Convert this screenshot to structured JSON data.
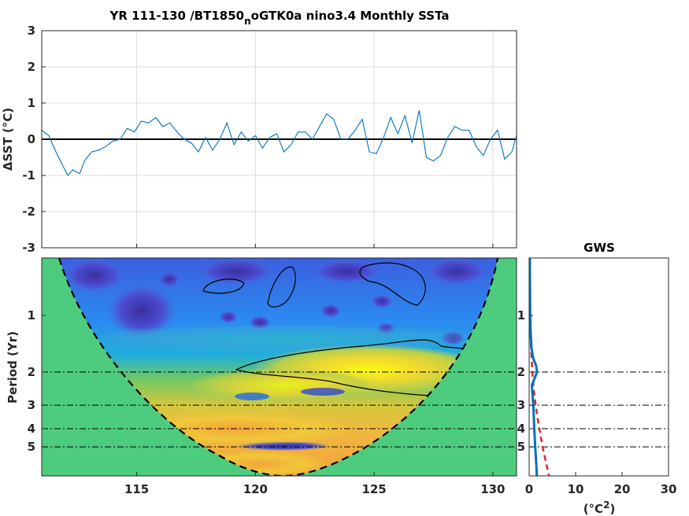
{
  "chart_data": [
    {
      "type": "line",
      "title_main": "YR 111-130 /BT1850",
      "title_sub": "n",
      "title_rest": "oGTK0a nino3.4 Monthly SSTa",
      "ylabel": "ΔSST (°C)",
      "xlim": [
        111,
        131
      ],
      "ylim": [
        -3,
        3
      ],
      "yticks": [
        "-3",
        "-2",
        "-1",
        "0",
        "1",
        "2",
        "3"
      ],
      "xticks": [
        115,
        120,
        125,
        130
      ],
      "grid": true,
      "series": [
        {
          "color": "#0072BD",
          "x": [
            111,
            111.3,
            111.6,
            111.9,
            112.1,
            112.3,
            112.6,
            112.8,
            113.1,
            113.4,
            113.7,
            114.0,
            114.3,
            114.6,
            114.9,
            115.2,
            115.5,
            115.8,
            116.1,
            116.4,
            116.7,
            117.0,
            117.3,
            117.6,
            117.9,
            118.2,
            118.5,
            118.8,
            119.1,
            119.4,
            119.7,
            120.0,
            120.3,
            120.6,
            120.9,
            121.2,
            121.5,
            121.8,
            122.1,
            122.4,
            122.7,
            123.0,
            123.3,
            123.6,
            123.9,
            124.2,
            124.5,
            124.8,
            125.1,
            125.4,
            125.7,
            126.0,
            126.3,
            126.6,
            126.9,
            127.2,
            127.5,
            127.8,
            128.1,
            128.4,
            128.7,
            129.0,
            129.3,
            129.6,
            129.9,
            130.2,
            130.5,
            130.8,
            131
          ],
          "values": [
            0.25,
            0.1,
            -0.35,
            -0.75,
            -1.0,
            -0.85,
            -0.95,
            -0.6,
            -0.35,
            -0.3,
            -0.2,
            -0.05,
            0.0,
            0.3,
            0.2,
            0.5,
            0.45,
            0.6,
            0.35,
            0.45,
            0.2,
            0.0,
            -0.1,
            -0.35,
            0.05,
            -0.3,
            0.0,
            0.45,
            -0.15,
            0.2,
            -0.05,
            0.1,
            -0.25,
            0.05,
            0.15,
            -0.35,
            -0.15,
            0.2,
            0.2,
            0.0,
            0.35,
            0.7,
            0.55,
            0.0,
            0.0,
            0.25,
            0.55,
            -0.35,
            -0.4,
            0.05,
            0.6,
            0.15,
            0.65,
            -0.1,
            0.8,
            -0.5,
            -0.6,
            -0.45,
            0.05,
            0.35,
            0.25,
            0.25,
            -0.2,
            -0.45,
            0.0,
            0.25,
            -0.55,
            -0.35,
            0.1
          ]
        }
      ]
    },
    {
      "type": "heatmap",
      "title": "",
      "ylabel": "Period (Yr)",
      "xlim": [
        111,
        131
      ],
      "yticks": [
        "1",
        "2",
        "3",
        "4",
        "5"
      ],
      "xticks": [
        "115",
        "120",
        "125",
        "130"
      ],
      "reference_periods": [
        2,
        3,
        4,
        5
      ]
    },
    {
      "type": "line",
      "title": "GWS",
      "xlabel": "(°C",
      "xlabel_sup": "2",
      "xlabel_close": ")",
      "xlim": [
        0,
        30
      ],
      "xticks": [
        "0",
        "10",
        "20",
        "30"
      ],
      "yticks": [
        "1",
        "2",
        "3",
        "4",
        "5"
      ],
      "series": [
        {
          "color": "#0072BD",
          "period": [
            0.35,
            0.6,
            0.9,
            1.2,
            1.5,
            1.7,
            1.85,
            2.0,
            2.15,
            2.35,
            2.6,
            3.0,
            3.5,
            4.0,
            5.0,
            6.0,
            7.5
          ],
          "values": [
            0.1,
            0.15,
            0.2,
            0.3,
            0.5,
            0.9,
            1.5,
            1.7,
            1.2,
            0.6,
            0.7,
            0.9,
            1.0,
            1.1,
            1.3,
            1.5,
            1.7
          ]
        },
        {
          "color": "#D62728",
          "dashed": true,
          "period": [
            0.35,
            0.6,
            0.9,
            1.2,
            1.5,
            2.0,
            2.5,
            3.0,
            3.5,
            4.0,
            5.0,
            6.0,
            7.5
          ],
          "values": [
            0.05,
            0.1,
            0.15,
            0.25,
            0.4,
            0.7,
            1.0,
            1.4,
            1.8,
            2.2,
            2.9,
            3.6,
            4.5
          ]
        }
      ]
    }
  ]
}
